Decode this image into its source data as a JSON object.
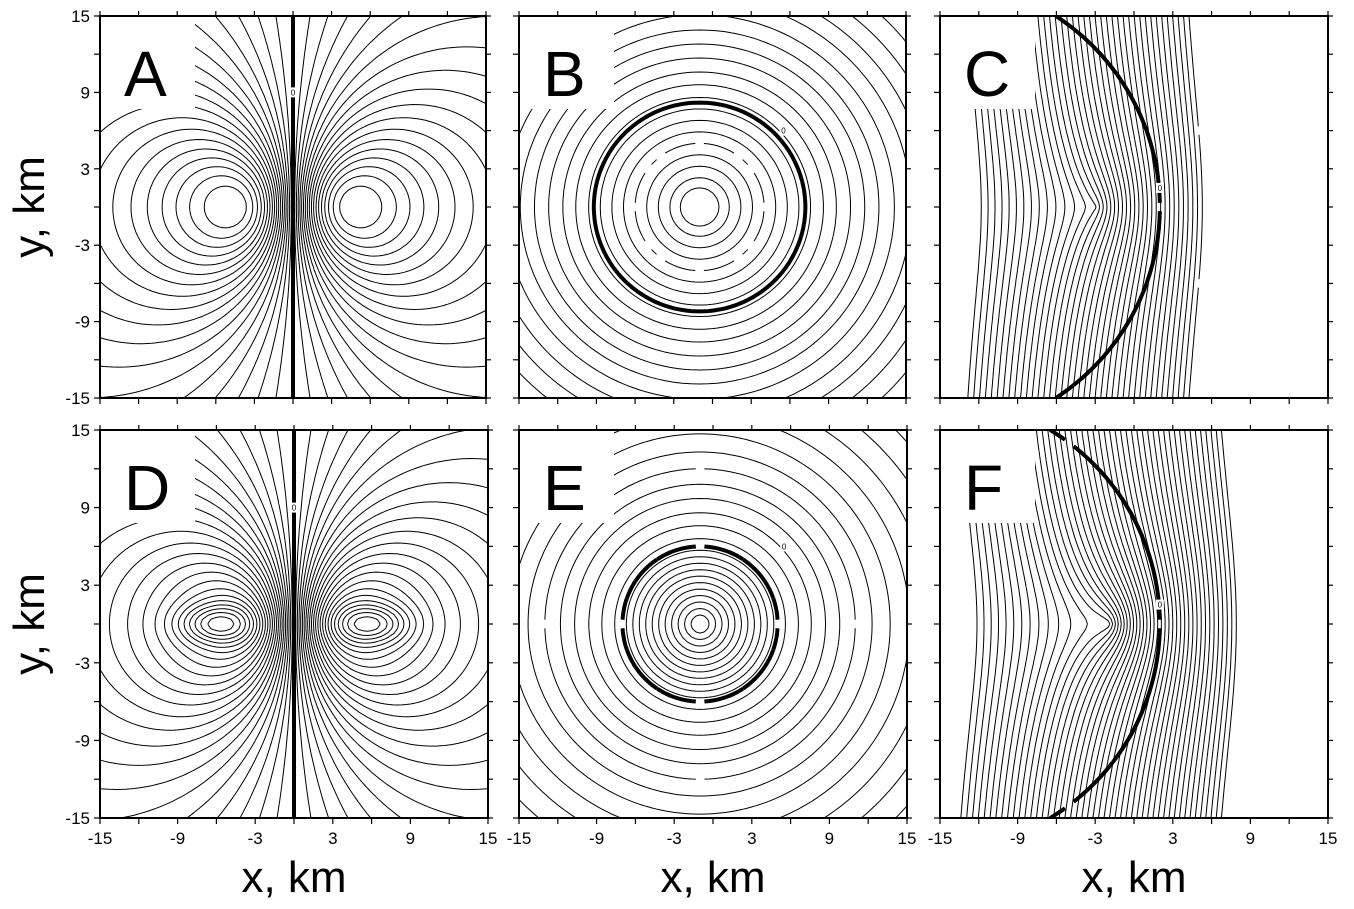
{
  "chart_data": [
    {
      "type": "contour",
      "panel_label": "A",
      "pattern": "dipole-two-lobe",
      "xlabel": "",
      "ylabel": "y, km",
      "xlim": [
        -15,
        15
      ],
      "ylim": [
        -15,
        15
      ],
      "xticks": [],
      "yticks": [
        "15",
        "9",
        "3",
        "-3",
        "-9",
        "-15"
      ],
      "zero_contour": "vertical line x = 0",
      "zero_label": "0"
    },
    {
      "type": "contour",
      "panel_label": "B",
      "pattern": "concentric-circles",
      "xlabel": "",
      "ylabel": "",
      "xlim": [
        -15,
        15
      ],
      "ylim": [
        -15,
        15
      ],
      "center": [
        -1,
        0
      ],
      "zero_contour_radius_km": 8.2,
      "zero_label": "0"
    },
    {
      "type": "contour",
      "panel_label": "C",
      "pattern": "off-center-source",
      "xlabel": "",
      "ylabel": "",
      "xlim": [
        -15,
        15
      ],
      "ylim": [
        -15,
        15
      ],
      "center": [
        -3,
        0
      ],
      "zero_contour": "arc through x = 2",
      "zero_label": "0"
    },
    {
      "type": "contour",
      "panel_label": "D",
      "pattern": "dipole-two-lobe-peaked",
      "xlabel": "x, km",
      "ylabel": "y, km",
      "xlim": [
        -15,
        15
      ],
      "ylim": [
        -15,
        15
      ],
      "xticks": [
        "-15",
        "-9",
        "-3",
        "3",
        "9",
        "15"
      ],
      "yticks": [
        "15",
        "9",
        "3",
        "-3",
        "-9",
        "-15"
      ],
      "zero_contour": "vertical line x = 0",
      "zero_label": "0"
    },
    {
      "type": "contour",
      "panel_label": "E",
      "pattern": "concentric-circles",
      "xlabel": "x, km",
      "ylabel": "",
      "xlim": [
        -15,
        15
      ],
      "ylim": [
        -15,
        15
      ],
      "xticks": [
        "-15",
        "-9",
        "-3",
        "3",
        "9",
        "15"
      ],
      "center": [
        -1,
        0
      ],
      "zero_contour_radius_km": 6,
      "zero_label": "0"
    },
    {
      "type": "contour",
      "panel_label": "F",
      "pattern": "off-center-source",
      "xlabel": "x, km",
      "ylabel": "",
      "xlim": [
        -15,
        15
      ],
      "ylim": [
        -15,
        15
      ],
      "xticks": [
        "-15",
        "-9",
        "-3",
        "3",
        "9",
        "15"
      ],
      "center": [
        -2,
        0
      ],
      "zero_contour": "arc through x = 2",
      "zero_label": "0"
    }
  ]
}
